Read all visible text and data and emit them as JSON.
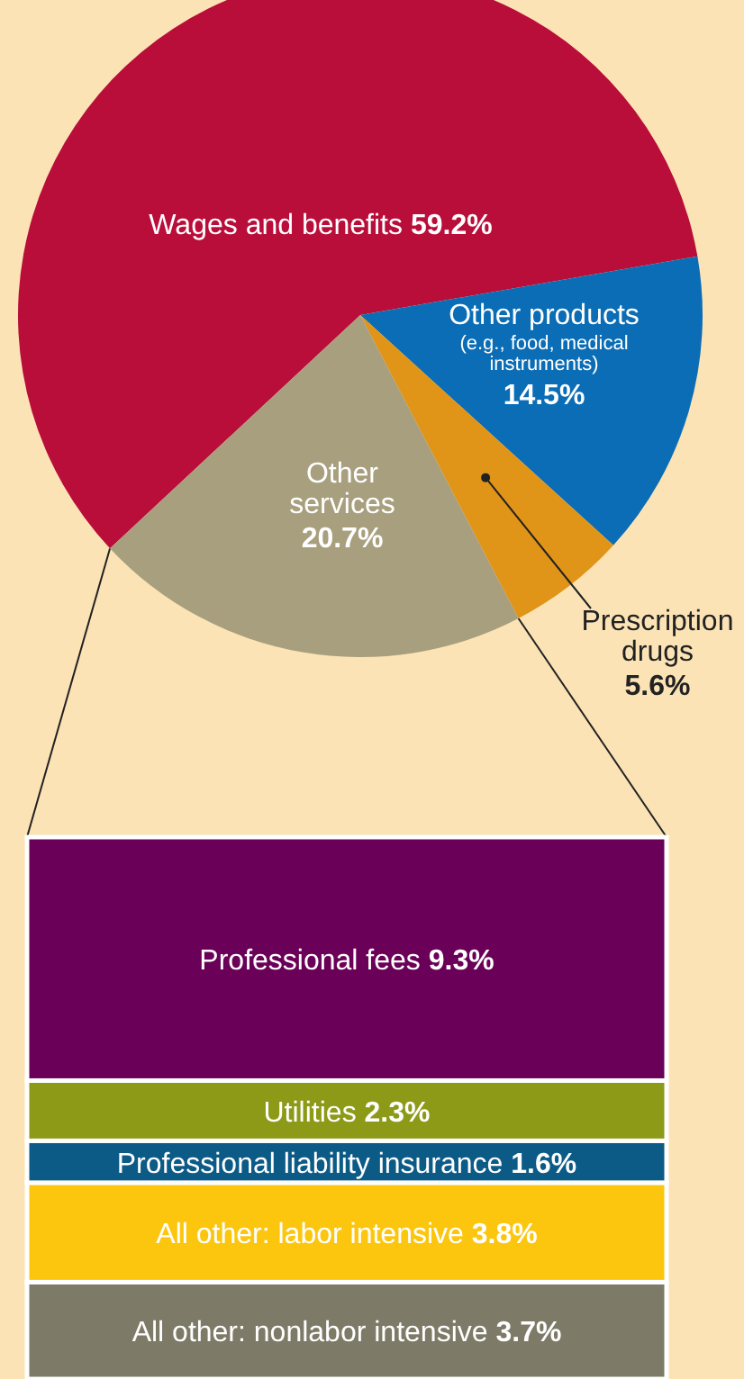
{
  "chart_data": [
    {
      "type": "pie",
      "categories": [
        "Wages and benefits",
        "Other products (e.g., food, medical instruments)",
        "Prescription drugs",
        "Other services"
      ],
      "values": [
        59.2,
        14.5,
        5.6,
        20.7
      ],
      "colors": [
        "#b90d3a",
        "#0b6db5",
        "#e09418",
        "#a89f7e"
      ],
      "value_labels": [
        "59.2%",
        "14.5%",
        "5.6%",
        "20.7%"
      ]
    },
    {
      "type": "bar",
      "stacked": true,
      "categories": [
        null
      ],
      "series": [
        {
          "name": "All other: nonlabor intensive",
          "color": "#7d7a67",
          "values": [
            3.7
          ],
          "value_labels": [
            "3.7%"
          ]
        },
        {
          "name": "All other: labor intensive",
          "color": "#fcc60f",
          "values": [
            3.8
          ],
          "value_labels": [
            "3.8%"
          ]
        },
        {
          "name": "Professional liability insurance",
          "color": "#0c5a86",
          "values": [
            1.6
          ],
          "value_labels": [
            "1.6%"
          ]
        },
        {
          "name": "Utilities",
          "color": "#8c9a17",
          "values": [
            2.3
          ],
          "value_labels": [
            "2.3%"
          ]
        },
        {
          "name": "Professional fees",
          "color": "#6a0057",
          "values": [
            9.3
          ],
          "value_labels": [
            "9.3%"
          ]
        }
      ]
    }
  ]
}
